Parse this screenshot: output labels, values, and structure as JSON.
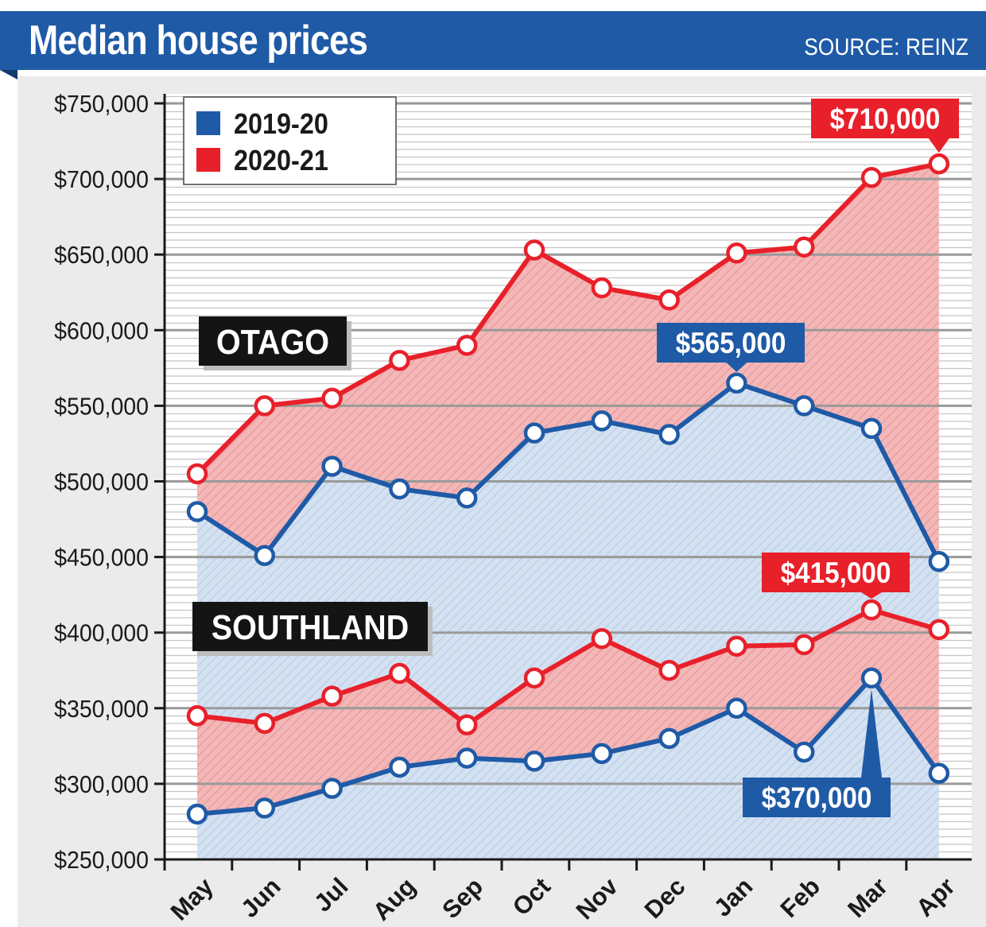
{
  "header": {
    "title": "Median house prices",
    "source": "SOURCE: REINZ"
  },
  "colors": {
    "header_blue": "#1f5aa6",
    "series_blue": "#1f5aa6",
    "series_red": "#e8202a",
    "label_black": "#1a1a1a"
  },
  "chart_data": {
    "type": "line",
    "title": "Median house prices",
    "xlabel": "",
    "ylabel": "",
    "x": [
      "May",
      "Jun",
      "Jul",
      "Aug",
      "Sep",
      "Oct",
      "Nov",
      "Dec",
      "Jan",
      "Feb",
      "Mar",
      "Apr"
    ],
    "ylim": [
      250000,
      750000
    ],
    "yticks": [
      250000,
      300000,
      350000,
      400000,
      450000,
      500000,
      550000,
      600000,
      650000,
      700000,
      750000
    ],
    "ytick_labels": [
      "$250,000",
      "$300,000",
      "$350,000",
      "$400,000",
      "$450,000",
      "$500,000",
      "$550,000",
      "$600,000",
      "$650,000",
      "$700,000",
      "$750,000"
    ],
    "legend": {
      "placement": "top-left",
      "entries": [
        {
          "label": "2019-20",
          "color": "#1f5aa6"
        },
        {
          "label": "2020-21",
          "color": "#e8202a"
        }
      ]
    },
    "regions": [
      {
        "name": "OTAGO",
        "series": [
          {
            "name": "2019-20",
            "color": "#1f5aa6",
            "values": [
              480000,
              451000,
              510000,
              495000,
              489000,
              532000,
              540000,
              531000,
              565000,
              550000,
              535000,
              447000
            ]
          },
          {
            "name": "2020-21",
            "color": "#e8202a",
            "values": [
              505000,
              550000,
              555000,
              580000,
              590000,
              653000,
              628000,
              620000,
              651000,
              655000,
              701000,
              710000
            ]
          }
        ]
      },
      {
        "name": "SOUTHLAND",
        "series": [
          {
            "name": "2019-20",
            "color": "#1f5aa6",
            "values": [
              280000,
              284000,
              297000,
              311000,
              317000,
              315000,
              320000,
              330000,
              350000,
              321000,
              370000,
              307000
            ]
          },
          {
            "name": "2020-21",
            "color": "#e8202a",
            "values": [
              345000,
              340000,
              358000,
              373000,
              339000,
              370000,
              396000,
              375000,
              391000,
              392000,
              415000,
              402000
            ]
          }
        ]
      }
    ],
    "callouts": [
      {
        "text": "$710,000",
        "region": 0,
        "series": 1,
        "index": 11,
        "color": "#e8202a"
      },
      {
        "text": "$565,000",
        "region": 0,
        "series": 0,
        "index": 8,
        "color": "#1f5aa6"
      },
      {
        "text": "$415,000",
        "region": 1,
        "series": 1,
        "index": 10,
        "color": "#e8202a"
      },
      {
        "text": "$370,000",
        "region": 1,
        "series": 0,
        "index": 10,
        "color": "#1f5aa6"
      }
    ],
    "grid": true
  }
}
